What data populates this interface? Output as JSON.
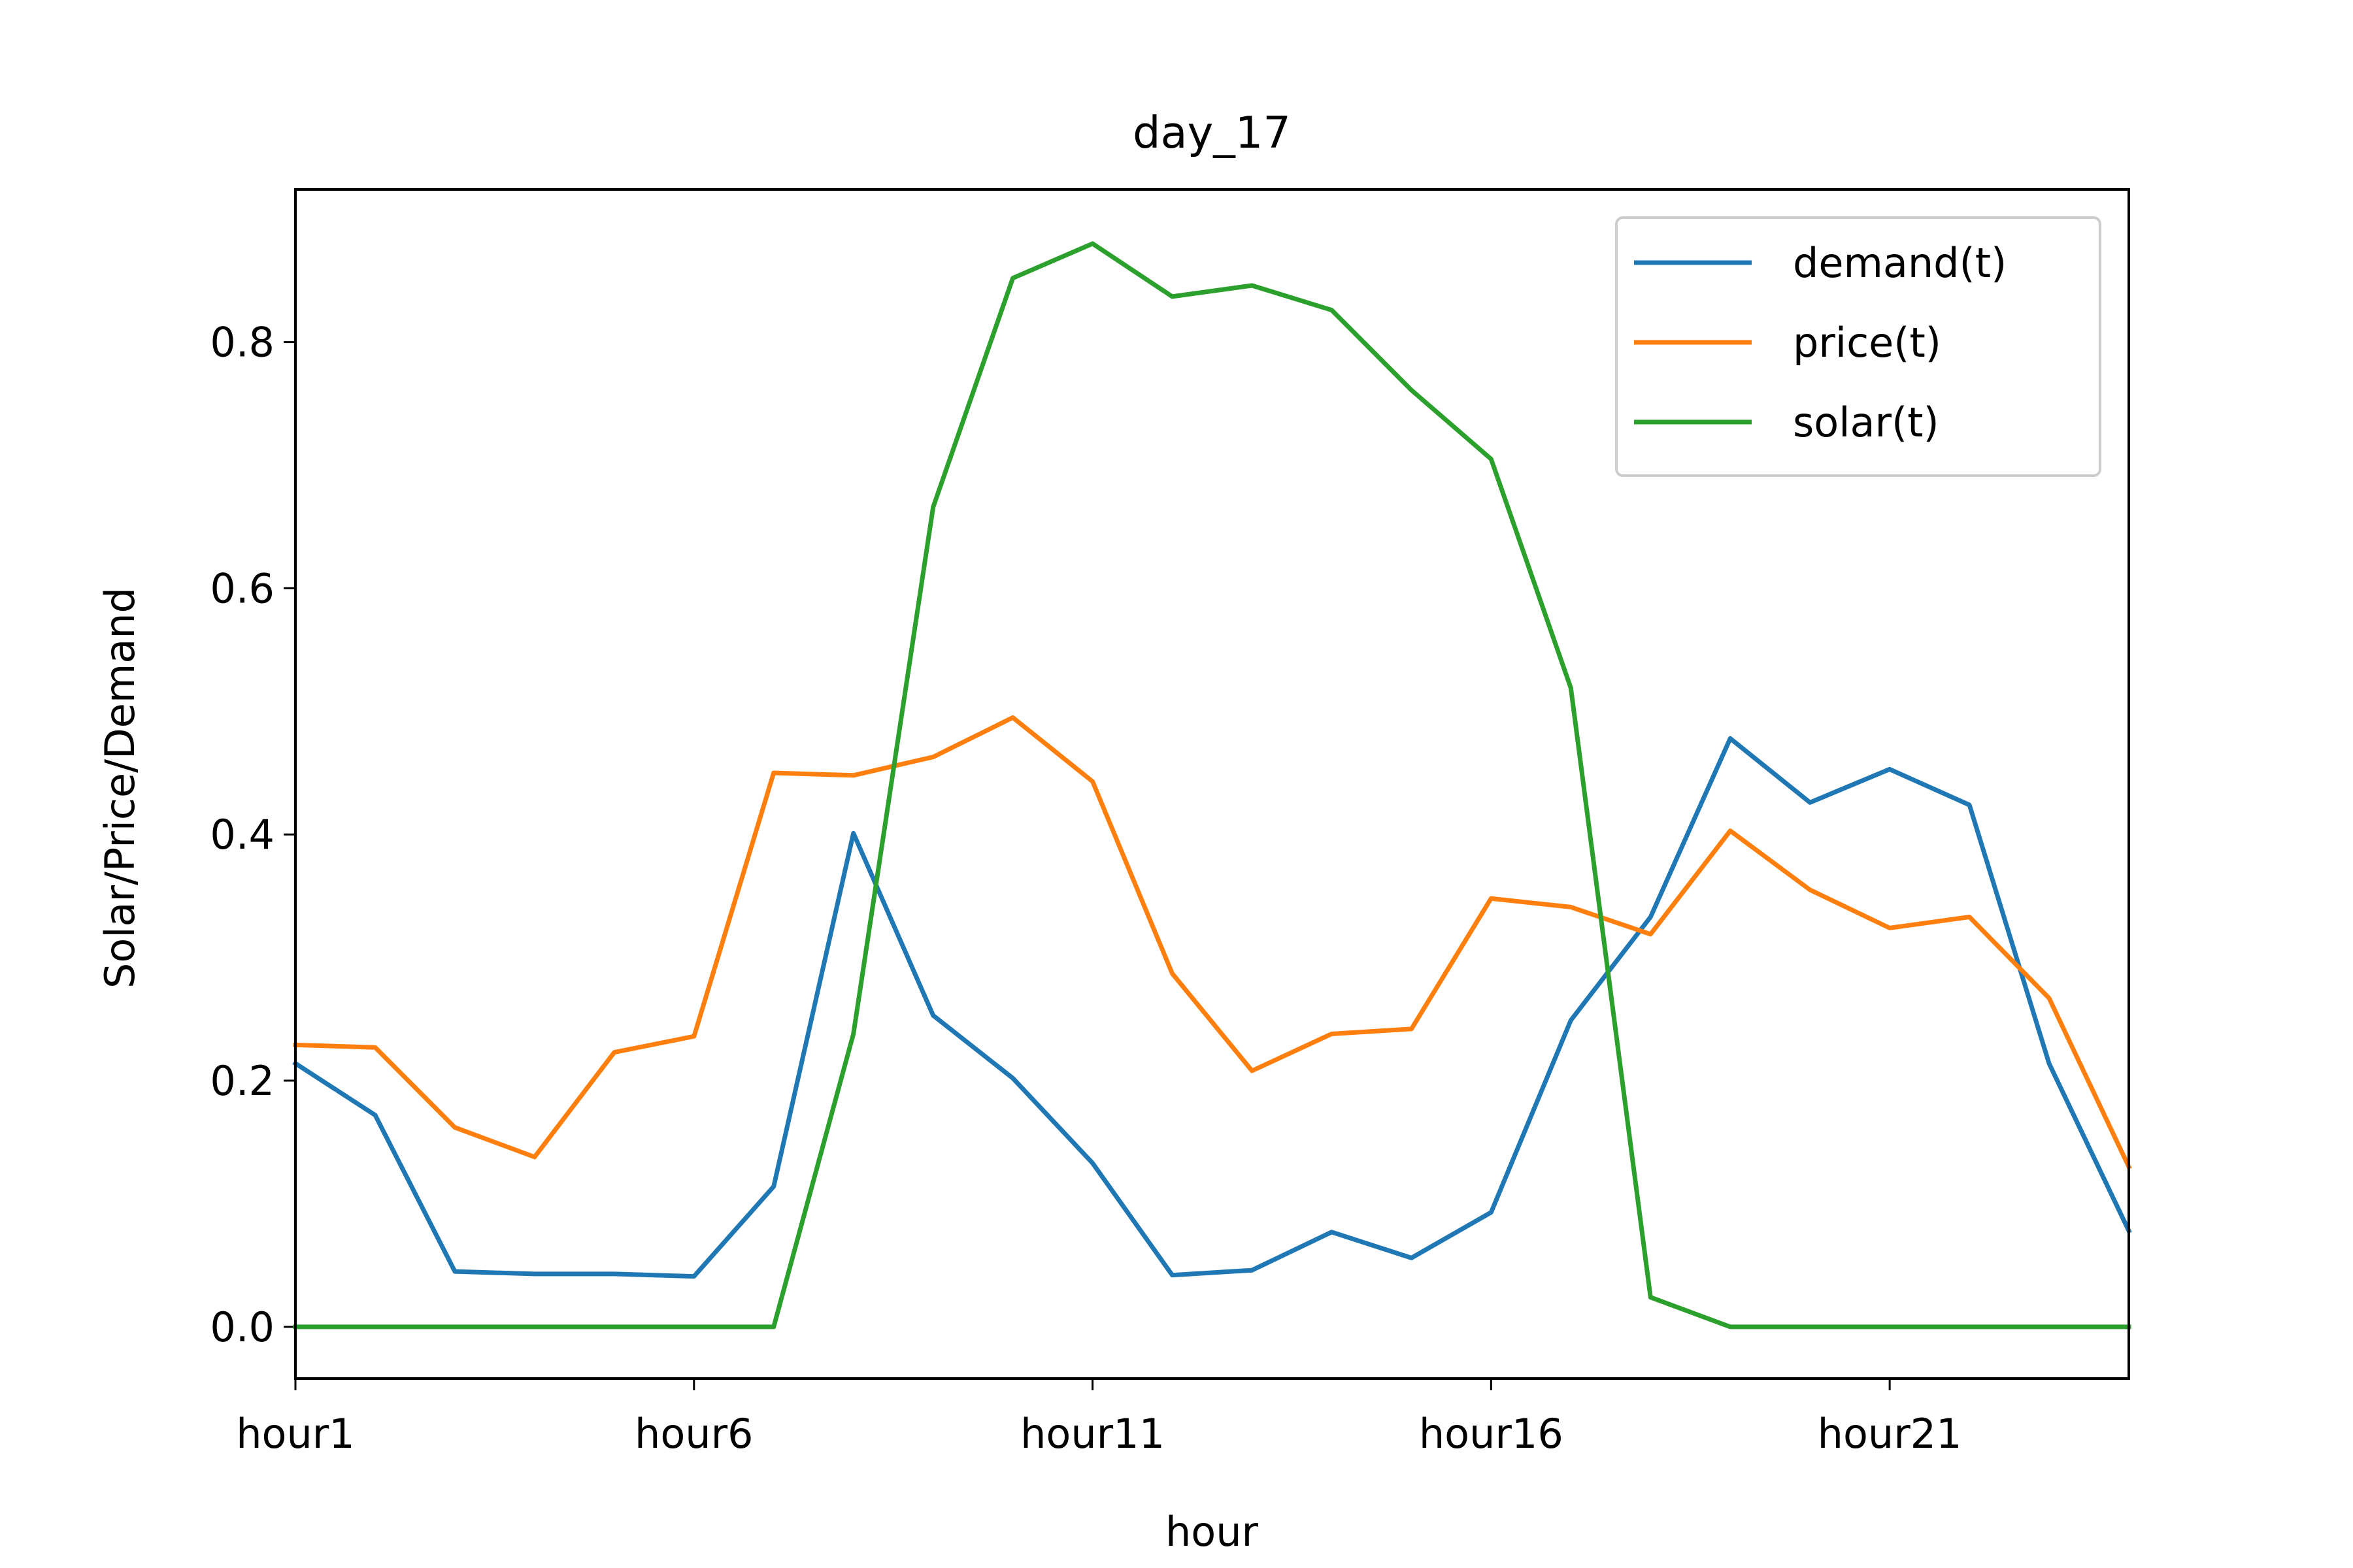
{
  "chart_data": {
    "type": "line",
    "title": "day_17",
    "xlabel": "hour",
    "ylabel": "Solar/Price/Demand",
    "x": [
      "hour1",
      "hour2",
      "hour3",
      "hour4",
      "hour5",
      "hour6",
      "hour7",
      "hour8",
      "hour9",
      "hour10",
      "hour11",
      "hour12",
      "hour13",
      "hour14",
      "hour15",
      "hour16",
      "hour17",
      "hour18",
      "hour19",
      "hour20",
      "hour21",
      "hour22",
      "hour23",
      "hour24"
    ],
    "x_ticks": [
      "hour1",
      "hour6",
      "hour11",
      "hour16",
      "hour21"
    ],
    "y_ticks": [
      "0.0",
      "0.2",
      "0.4",
      "0.6",
      "0.8"
    ],
    "ylim": [
      -0.042,
      0.924
    ],
    "grid": false,
    "legend_position": "top-right",
    "series": [
      {
        "name": "demand(t)",
        "color": "#1f77b4",
        "values": [
          0.214,
          0.172,
          0.045,
          0.043,
          0.043,
          0.041,
          0.114,
          0.401,
          0.253,
          0.202,
          0.133,
          0.042,
          0.046,
          0.077,
          0.056,
          0.093,
          0.249,
          0.333,
          0.478,
          0.426,
          0.453,
          0.424,
          0.214,
          0.078
        ]
      },
      {
        "name": "price(t)",
        "color": "#ff7f0e",
        "values": [
          0.229,
          0.227,
          0.162,
          0.138,
          0.223,
          0.236,
          0.45,
          0.448,
          0.463,
          0.495,
          0.443,
          0.287,
          0.208,
          0.238,
          0.242,
          0.348,
          0.341,
          0.319,
          0.403,
          0.355,
          0.324,
          0.333,
          0.267,
          0.13
        ]
      },
      {
        "name": "solar(t)",
        "color": "#2ca02c",
        "values": [
          0.0,
          0.0,
          0.0,
          0.0,
          0.0,
          0.0,
          0.0,
          0.238,
          0.666,
          0.852,
          0.88,
          0.837,
          0.846,
          0.826,
          0.761,
          0.705,
          0.519,
          0.024,
          0.0,
          0.0,
          0.0,
          0.0,
          0.0,
          0.0
        ]
      }
    ]
  }
}
